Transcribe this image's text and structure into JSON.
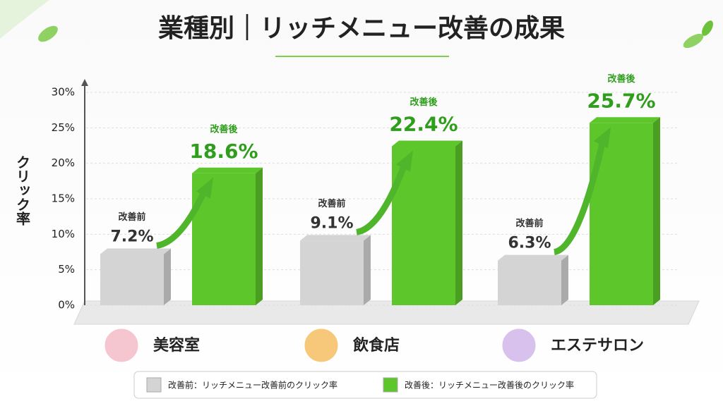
{
  "chart_data": {
    "type": "bar",
    "title": "業種別｜リッチメニュー改善の成果",
    "ylabel": "クリック率",
    "categories": [
      "美容室",
      "飲食店",
      "エステサロン"
    ],
    "series": [
      {
        "name": "改善前",
        "legend_label": "改善前：リッチメニュー改善前のクリック率",
        "color": "#d4d4d4",
        "values": [
          7.2,
          9.1,
          6.3
        ],
        "value_labels": [
          "7.2%",
          "9.1%",
          "6.3%"
        ]
      },
      {
        "name": "改善後",
        "legend_label": "改善後：リッチメニュー改善後のクリック率",
        "color": "#5cc62b",
        "values": [
          18.6,
          22.4,
          25.7
        ],
        "value_labels": [
          "18.6%",
          "22.4%",
          "25.7%"
        ]
      }
    ],
    "ylim": [
      0,
      30
    ],
    "yticks": [
      {
        "value": 0,
        "label": "0%"
      },
      {
        "value": 5,
        "label": "5%"
      },
      {
        "value": 10,
        "label": "10%"
      },
      {
        "value": 15,
        "label": "15%"
      },
      {
        "value": 20,
        "label": "20%"
      },
      {
        "value": 25,
        "label": "25%"
      },
      {
        "value": 30,
        "label": "30%"
      }
    ],
    "grid": true
  }
}
